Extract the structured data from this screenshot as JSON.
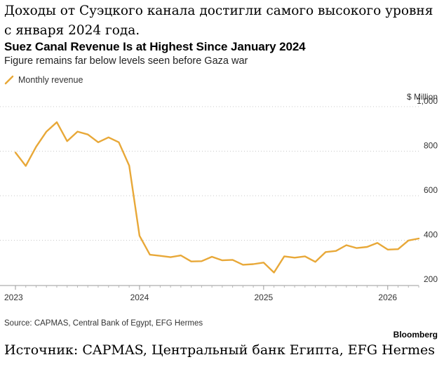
{
  "headline_ru": "Доходы от Суэцкого канала достигли самого высокого уровня с января 2024 года.",
  "footer_ru": "Источник: CAPMAS, Центральный банк Египта, EFG Hermes",
  "chart_data": {
    "type": "line",
    "title": "Suez Canal Revenue Is at Highest Since January 2024",
    "subtitle": "Figure remains far below levels seen before Gaza war",
    "ylabel": "$ Million",
    "ylim": [
      200,
      1000
    ],
    "yticks": [
      "1,000",
      "800",
      "600",
      "400",
      "200"
    ],
    "ytick_values": [
      1000,
      800,
      600,
      400,
      200
    ],
    "xticks": [
      "2023",
      "2024",
      "2025",
      "2026"
    ],
    "xtick_values": [
      2023.0,
      2024.0,
      2025.0,
      2026.0
    ],
    "xlim": [
      2023.0,
      2026.25
    ],
    "legend_position": "top-left",
    "series": [
      {
        "name": "Monthly revenue",
        "color": "#e8a838",
        "x": [
          2023.0,
          2023.0833,
          2023.1667,
          2023.25,
          2023.3333,
          2023.4167,
          2023.5,
          2023.5833,
          2023.6667,
          2023.75,
          2023.8333,
          2023.9167,
          2024.0,
          2024.0833,
          2024.1667,
          2024.25,
          2024.3333,
          2024.4167,
          2024.5,
          2024.5833,
          2024.6667,
          2024.75,
          2024.8333,
          2024.9167,
          2025.0,
          2025.0833,
          2025.1667,
          2025.25,
          2025.3333,
          2025.4167,
          2025.5,
          2025.5833,
          2025.6667,
          2025.75,
          2025.8333,
          2025.9167,
          2026.0,
          2026.0833,
          2026.1667,
          2026.25
        ],
        "values": [
          794,
          734,
          820,
          888,
          930,
          845,
          888,
          875,
          840,
          862,
          840,
          735,
          420,
          335,
          330,
          324,
          332,
          305,
          306,
          326,
          310,
          312,
          290,
          293,
          300,
          255,
          328,
          322,
          328,
          303,
          347,
          352,
          378,
          365,
          370,
          388,
          358,
          360,
          399,
          408
        ]
      }
    ]
  },
  "source_text": "Source: CAPMAS, Central Bank of Egypt, EFG Hermes",
  "brand": "Bloomberg"
}
